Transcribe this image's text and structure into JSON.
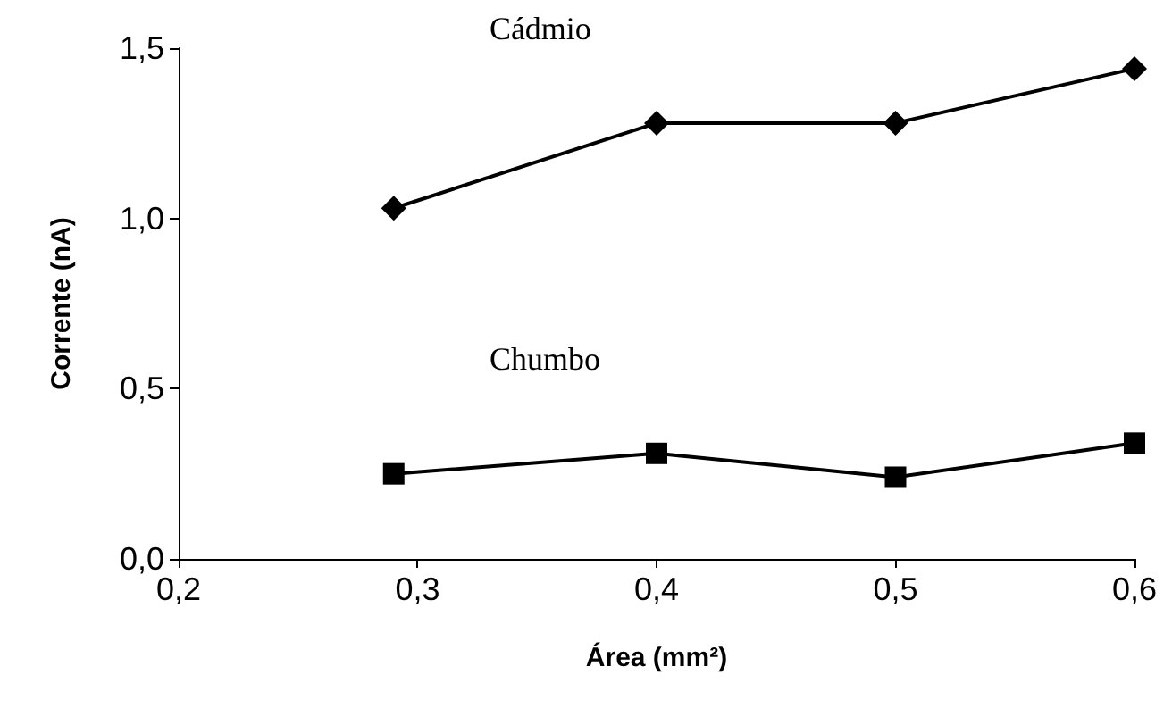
{
  "chart_data": {
    "type": "line",
    "xlabel": "Área (mm²)",
    "ylabel": "Corrente (nA)",
    "x": [
      0.29,
      0.4,
      0.5,
      0.6
    ],
    "series": [
      {
        "name": "Cádmio",
        "color": "#000000",
        "marker": "diamond",
        "values": [
          1.03,
          1.28,
          1.28,
          1.44
        ]
      },
      {
        "name": "Chumbo",
        "color": "#000000",
        "marker": "square",
        "values": [
          0.25,
          0.31,
          0.24,
          0.34
        ]
      }
    ],
    "xlim": [
      0.2,
      0.6
    ],
    "xticks": [
      {
        "value": 0.2,
        "label": "0,2"
      },
      {
        "value": 0.3,
        "label": "0,3"
      },
      {
        "value": 0.4,
        "label": "0,4"
      },
      {
        "value": 0.5,
        "label": "0,5"
      },
      {
        "value": 0.6,
        "label": "0,6"
      }
    ],
    "ylim": [
      0,
      1.5
    ],
    "yticks": [
      {
        "value": 0,
        "label": "0,0"
      },
      {
        "value": 0.5,
        "label": "0,5"
      },
      {
        "value": 1,
        "label": "1,0"
      },
      {
        "value": 1.5,
        "label": "1,5"
      }
    ],
    "grid": false,
    "legend": false,
    "line_style": "solid"
  }
}
